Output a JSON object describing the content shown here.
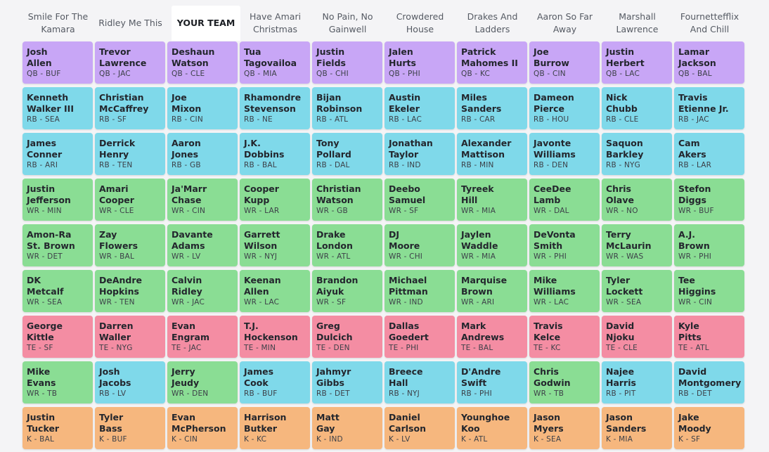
{
  "colors": {
    "QB": "#c8a6f6",
    "RB": "#7fd9ea",
    "WR": "#8add94",
    "TE": "#f48da3",
    "K": "#f6b77e"
  },
  "teams": [
    "Smile For The Kamara",
    "Ridley Me This",
    "YOUR TEAM",
    "Have Amari Christmas",
    "No Pain, No Gainwell",
    "Crowdered House",
    "Drakes And Ladders",
    "Aaron So Far Away",
    "Marshall Lawrence",
    "Fournettefflix And Chill"
  ],
  "highlighted_team_index": 2,
  "rounds": [
    [
      {
        "first": "Josh",
        "last": "Allen",
        "pos": "QB",
        "team": "BUF"
      },
      {
        "first": "Trevor",
        "last": "Lawrence",
        "pos": "QB",
        "team": "JAC"
      },
      {
        "first": "Deshaun",
        "last": "Watson",
        "pos": "QB",
        "team": "CLE"
      },
      {
        "first": "Tua",
        "last": "Tagovailoa",
        "pos": "QB",
        "team": "MIA"
      },
      {
        "first": "Justin",
        "last": "Fields",
        "pos": "QB",
        "team": "CHI"
      },
      {
        "first": "Jalen",
        "last": "Hurts",
        "pos": "QB",
        "team": "PHI"
      },
      {
        "first": "Patrick",
        "last": "Mahomes II",
        "pos": "QB",
        "team": "KC"
      },
      {
        "first": "Joe",
        "last": "Burrow",
        "pos": "QB",
        "team": "CIN"
      },
      {
        "first": "Justin",
        "last": "Herbert",
        "pos": "QB",
        "team": "LAC"
      },
      {
        "first": "Lamar",
        "last": "Jackson",
        "pos": "QB",
        "team": "BAL"
      }
    ],
    [
      {
        "first": "Kenneth",
        "last": "Walker III",
        "pos": "RB",
        "team": "SEA"
      },
      {
        "first": "Christian",
        "last": "McCaffrey",
        "pos": "RB",
        "team": "SF"
      },
      {
        "first": "Joe",
        "last": "Mixon",
        "pos": "RB",
        "team": "CIN"
      },
      {
        "first": "Rhamondre",
        "last": "Stevenson",
        "pos": "RB",
        "team": "NE"
      },
      {
        "first": "Bijan",
        "last": "Robinson",
        "pos": "RB",
        "team": "ATL"
      },
      {
        "first": "Austin",
        "last": "Ekeler",
        "pos": "RB",
        "team": "LAC"
      },
      {
        "first": "Miles",
        "last": "Sanders",
        "pos": "RB",
        "team": "CAR"
      },
      {
        "first": "Dameon",
        "last": "Pierce",
        "pos": "RB",
        "team": "HOU"
      },
      {
        "first": "Nick",
        "last": "Chubb",
        "pos": "RB",
        "team": "CLE"
      },
      {
        "first": "Travis",
        "last": "Etienne Jr.",
        "pos": "RB",
        "team": "JAC"
      }
    ],
    [
      {
        "first": "James",
        "last": "Conner",
        "pos": "RB",
        "team": "ARI"
      },
      {
        "first": "Derrick",
        "last": "Henry",
        "pos": "RB",
        "team": "TEN"
      },
      {
        "first": "Aaron",
        "last": "Jones",
        "pos": "RB",
        "team": "GB"
      },
      {
        "first": "J.K.",
        "last": "Dobbins",
        "pos": "RB",
        "team": "BAL"
      },
      {
        "first": "Tony",
        "last": "Pollard",
        "pos": "RB",
        "team": "DAL"
      },
      {
        "first": "Jonathan",
        "last": "Taylor",
        "pos": "RB",
        "team": "IND"
      },
      {
        "first": "Alexander",
        "last": "Mattison",
        "pos": "RB",
        "team": "MIN"
      },
      {
        "first": "Javonte",
        "last": "Williams",
        "pos": "RB",
        "team": "DEN"
      },
      {
        "first": "Saquon",
        "last": "Barkley",
        "pos": "RB",
        "team": "NYG"
      },
      {
        "first": "Cam",
        "last": "Akers",
        "pos": "RB",
        "team": "LAR"
      }
    ],
    [
      {
        "first": "Justin",
        "last": "Jefferson",
        "pos": "WR",
        "team": "MIN"
      },
      {
        "first": "Amari",
        "last": "Cooper",
        "pos": "WR",
        "team": "CLE"
      },
      {
        "first": "Ja'Marr",
        "last": "Chase",
        "pos": "WR",
        "team": "CIN"
      },
      {
        "first": "Cooper",
        "last": "Kupp",
        "pos": "WR",
        "team": "LAR"
      },
      {
        "first": "Christian",
        "last": "Watson",
        "pos": "WR",
        "team": "GB"
      },
      {
        "first": "Deebo",
        "last": "Samuel",
        "pos": "WR",
        "team": "SF"
      },
      {
        "first": "Tyreek",
        "last": "Hill",
        "pos": "WR",
        "team": "MIA"
      },
      {
        "first": "CeeDee",
        "last": "Lamb",
        "pos": "WR",
        "team": "DAL"
      },
      {
        "first": "Chris",
        "last": "Olave",
        "pos": "WR",
        "team": "NO"
      },
      {
        "first": "Stefon",
        "last": "Diggs",
        "pos": "WR",
        "team": "BUF"
      }
    ],
    [
      {
        "first": "Amon-Ra",
        "last": "St. Brown",
        "pos": "WR",
        "team": "DET"
      },
      {
        "first": "Zay",
        "last": "Flowers",
        "pos": "WR",
        "team": "BAL"
      },
      {
        "first": "Davante",
        "last": "Adams",
        "pos": "WR",
        "team": "LV"
      },
      {
        "first": "Garrett",
        "last": "Wilson",
        "pos": "WR",
        "team": "NYJ"
      },
      {
        "first": "Drake",
        "last": "London",
        "pos": "WR",
        "team": "ATL"
      },
      {
        "first": "DJ",
        "last": "Moore",
        "pos": "WR",
        "team": "CHI"
      },
      {
        "first": "Jaylen",
        "last": "Waddle",
        "pos": "WR",
        "team": "MIA"
      },
      {
        "first": "DeVonta",
        "last": "Smith",
        "pos": "WR",
        "team": "PHI"
      },
      {
        "first": "Terry",
        "last": "McLaurin",
        "pos": "WR",
        "team": "WAS"
      },
      {
        "first": "A.J.",
        "last": "Brown",
        "pos": "WR",
        "team": "PHI"
      }
    ],
    [
      {
        "first": "DK",
        "last": "Metcalf",
        "pos": "WR",
        "team": "SEA"
      },
      {
        "first": "DeAndre",
        "last": "Hopkins",
        "pos": "WR",
        "team": "TEN"
      },
      {
        "first": "Calvin",
        "last": "Ridley",
        "pos": "WR",
        "team": "JAC"
      },
      {
        "first": "Keenan",
        "last": "Allen",
        "pos": "WR",
        "team": "LAC"
      },
      {
        "first": "Brandon",
        "last": "Aiyuk",
        "pos": "WR",
        "team": "SF"
      },
      {
        "first": "Michael",
        "last": "Pittman",
        "pos": "WR",
        "team": "IND"
      },
      {
        "first": "Marquise",
        "last": "Brown",
        "pos": "WR",
        "team": "ARI"
      },
      {
        "first": "Mike",
        "last": "Williams",
        "pos": "WR",
        "team": "LAC"
      },
      {
        "first": "Tyler",
        "last": "Lockett",
        "pos": "WR",
        "team": "SEA"
      },
      {
        "first": "Tee",
        "last": "Higgins",
        "pos": "WR",
        "team": "CIN"
      }
    ],
    [
      {
        "first": "George",
        "last": "Kittle",
        "pos": "TE",
        "team": "SF"
      },
      {
        "first": "Darren",
        "last": "Waller",
        "pos": "TE",
        "team": "NYG"
      },
      {
        "first": "Evan",
        "last": "Engram",
        "pos": "TE",
        "team": "JAC"
      },
      {
        "first": "T.J.",
        "last": "Hockenson",
        "pos": "TE",
        "team": "MIN"
      },
      {
        "first": "Greg",
        "last": "Dulcich",
        "pos": "TE",
        "team": "DEN"
      },
      {
        "first": "Dallas",
        "last": "Goedert",
        "pos": "TE",
        "team": "PHI"
      },
      {
        "first": "Mark",
        "last": "Andrews",
        "pos": "TE",
        "team": "BAL"
      },
      {
        "first": "Travis",
        "last": "Kelce",
        "pos": "TE",
        "team": "KC"
      },
      {
        "first": "David",
        "last": "Njoku",
        "pos": "TE",
        "team": "CLE"
      },
      {
        "first": "Kyle",
        "last": "Pitts",
        "pos": "TE",
        "team": "ATL"
      }
    ],
    [
      {
        "first": "Mike",
        "last": "Evans",
        "pos": "WR",
        "team": "TB"
      },
      {
        "first": "Josh",
        "last": "Jacobs",
        "pos": "RB",
        "team": "LV"
      },
      {
        "first": "Jerry",
        "last": "Jeudy",
        "pos": "WR",
        "team": "DEN"
      },
      {
        "first": "James",
        "last": "Cook",
        "pos": "RB",
        "team": "BUF"
      },
      {
        "first": "Jahmyr",
        "last": "Gibbs",
        "pos": "RB",
        "team": "DET"
      },
      {
        "first": "Breece",
        "last": "Hall",
        "pos": "RB",
        "team": "NYJ"
      },
      {
        "first": "D'Andre",
        "last": "Swift",
        "pos": "RB",
        "team": "PHI"
      },
      {
        "first": "Chris",
        "last": "Godwin",
        "pos": "WR",
        "team": "TB"
      },
      {
        "first": "Najee",
        "last": "Harris",
        "pos": "RB",
        "team": "PIT"
      },
      {
        "first": "David",
        "last": "Montgomery",
        "pos": "RB",
        "team": "DET"
      }
    ],
    [
      {
        "first": "Justin",
        "last": "Tucker",
        "pos": "K",
        "team": "BAL"
      },
      {
        "first": "Tyler",
        "last": "Bass",
        "pos": "K",
        "team": "BUF"
      },
      {
        "first": "Evan",
        "last": "McPherson",
        "pos": "K",
        "team": "CIN"
      },
      {
        "first": "Harrison",
        "last": "Butker",
        "pos": "K",
        "team": "KC"
      },
      {
        "first": "Matt",
        "last": "Gay",
        "pos": "K",
        "team": "IND"
      },
      {
        "first": "Daniel",
        "last": "Carlson",
        "pos": "K",
        "team": "LV"
      },
      {
        "first": "Younghoe",
        "last": "Koo",
        "pos": "K",
        "team": "ATL"
      },
      {
        "first": "Jason",
        "last": "Myers",
        "pos": "K",
        "team": "SEA"
      },
      {
        "first": "Jason",
        "last": "Sanders",
        "pos": "K",
        "team": "MIA"
      },
      {
        "first": "Jake",
        "last": "Moody",
        "pos": "K",
        "team": "SF"
      }
    ]
  ]
}
